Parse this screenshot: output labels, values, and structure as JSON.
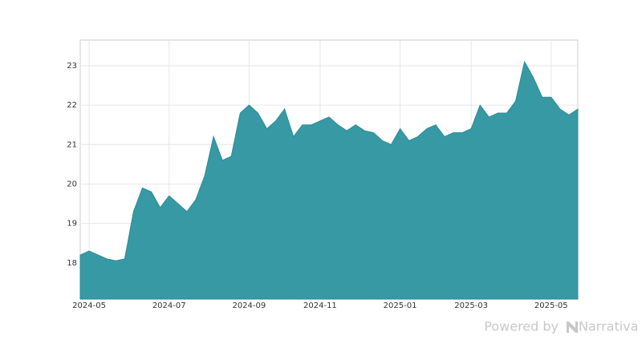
{
  "chart_data": {
    "type": "area",
    "categories": [
      null,
      "2024-05",
      null,
      null,
      null,
      null,
      null,
      null,
      null,
      null,
      "2024-07",
      null,
      null,
      null,
      null,
      null,
      null,
      null,
      null,
      "2024-09",
      null,
      null,
      null,
      null,
      null,
      null,
      null,
      "2024-11",
      null,
      null,
      null,
      null,
      null,
      null,
      null,
      null,
      "2025-01",
      null,
      null,
      null,
      null,
      null,
      null,
      null,
      "2025-03",
      null,
      null,
      null,
      null,
      null,
      null,
      null,
      null,
      "2025-05",
      null,
      null,
      null
    ],
    "values": [
      18.2,
      18.3,
      18.2,
      18.1,
      18.05,
      18.1,
      19.3,
      19.9,
      19.8,
      19.4,
      19.7,
      19.5,
      19.3,
      19.6,
      20.2,
      21.2,
      20.6,
      20.7,
      21.8,
      22.0,
      21.8,
      21.4,
      21.6,
      21.9,
      21.2,
      21.5,
      21.5,
      21.6,
      21.7,
      21.5,
      21.35,
      21.5,
      21.35,
      21.3,
      21.1,
      21.0,
      21.4,
      21.1,
      21.2,
      21.4,
      21.5,
      21.2,
      21.3,
      21.3,
      21.4,
      22.0,
      21.7,
      21.8,
      21.8,
      22.1,
      23.1,
      22.7,
      22.2,
      22.2,
      21.9,
      21.75,
      21.9
    ],
    "color": "#3799a4",
    "line_color": "#2a8c97",
    "ylim": [
      17.08,
      23.65
    ],
    "yticks": [
      18,
      19,
      20,
      21,
      22,
      23
    ],
    "grid": true
  },
  "footer": {
    "powered_by": "Powered by",
    "brand": "Narrativa"
  }
}
